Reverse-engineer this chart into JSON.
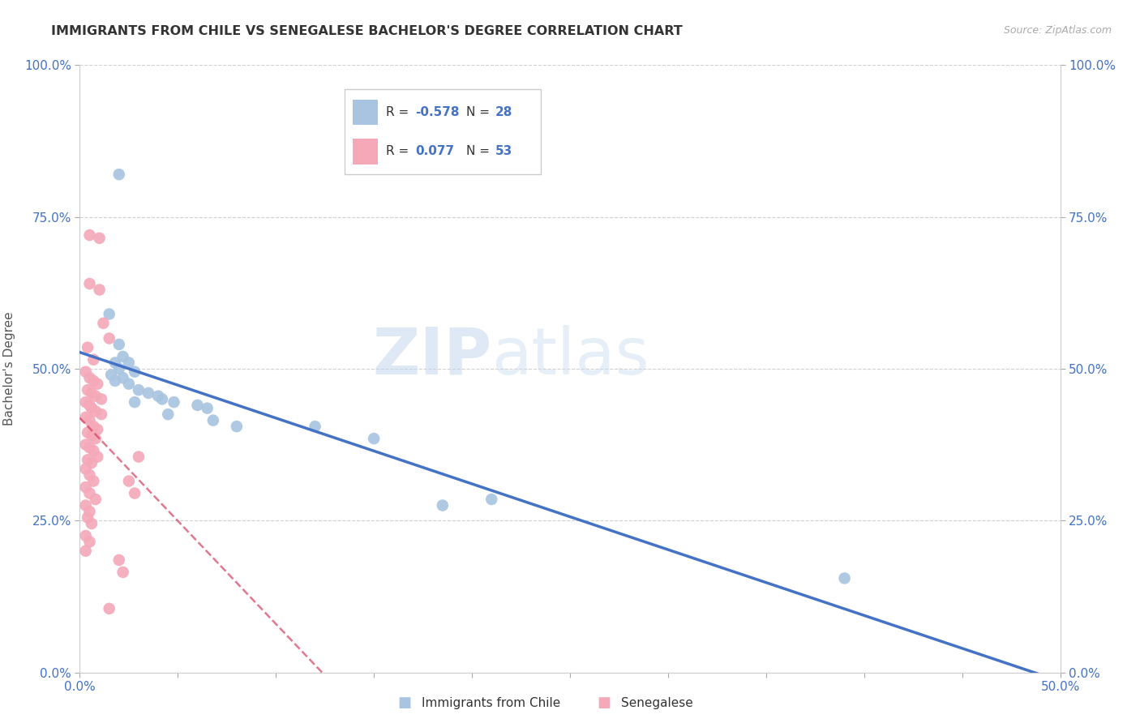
{
  "title": "IMMIGRANTS FROM CHILE VS SENEGALESE BACHELOR'S DEGREE CORRELATION CHART",
  "source": "Source: ZipAtlas.com",
  "xlabel": "",
  "ylabel": "Bachelor's Degree",
  "xlim": [
    0.0,
    0.5
  ],
  "ylim": [
    0.0,
    1.0
  ],
  "xtick_vals": [
    0.0,
    0.05,
    0.1,
    0.15,
    0.2,
    0.25,
    0.3,
    0.35,
    0.4,
    0.45,
    0.5
  ],
  "xtick_labels_show": [
    "0.0%",
    "",
    "",
    "",
    "",
    "",
    "",
    "",
    "",
    "",
    "50.0%"
  ],
  "ytick_vals": [
    0.0,
    0.25,
    0.5,
    0.75,
    1.0
  ],
  "ytick_labels": [
    "0.0%",
    "25.0%",
    "50.0%",
    "75.0%",
    "100.0%"
  ],
  "legend_r_chile": "-0.578",
  "legend_n_chile": "28",
  "legend_r_senegal": "0.077",
  "legend_n_senegal": "53",
  "chile_color": "#a8c4e0",
  "senegal_color": "#f4a8b8",
  "chile_line_color": "#4472c4",
  "senegal_line_color": "#d04060",
  "senegal_line_style": "--",
  "watermark_zip": "ZIP",
  "watermark_atlas": "atlas",
  "chile_points": [
    [
      0.02,
      0.82
    ],
    [
      0.015,
      0.59
    ],
    [
      0.02,
      0.54
    ],
    [
      0.022,
      0.52
    ],
    [
      0.018,
      0.51
    ],
    [
      0.025,
      0.51
    ],
    [
      0.02,
      0.5
    ],
    [
      0.028,
      0.495
    ],
    [
      0.016,
      0.49
    ],
    [
      0.022,
      0.485
    ],
    [
      0.018,
      0.48
    ],
    [
      0.025,
      0.475
    ],
    [
      0.03,
      0.465
    ],
    [
      0.035,
      0.46
    ],
    [
      0.04,
      0.455
    ],
    [
      0.042,
      0.45
    ],
    [
      0.028,
      0.445
    ],
    [
      0.048,
      0.445
    ],
    [
      0.06,
      0.44
    ],
    [
      0.065,
      0.435
    ],
    [
      0.045,
      0.425
    ],
    [
      0.068,
      0.415
    ],
    [
      0.08,
      0.405
    ],
    [
      0.12,
      0.405
    ],
    [
      0.15,
      0.385
    ],
    [
      0.21,
      0.285
    ],
    [
      0.185,
      0.275
    ],
    [
      0.39,
      0.155
    ]
  ],
  "senegal_points": [
    [
      0.005,
      0.72
    ],
    [
      0.01,
      0.715
    ],
    [
      0.005,
      0.64
    ],
    [
      0.01,
      0.63
    ],
    [
      0.012,
      0.575
    ],
    [
      0.015,
      0.55
    ],
    [
      0.004,
      0.535
    ],
    [
      0.007,
      0.515
    ],
    [
      0.003,
      0.495
    ],
    [
      0.005,
      0.485
    ],
    [
      0.007,
      0.48
    ],
    [
      0.009,
      0.475
    ],
    [
      0.004,
      0.465
    ],
    [
      0.006,
      0.46
    ],
    [
      0.008,
      0.455
    ],
    [
      0.011,
      0.45
    ],
    [
      0.003,
      0.445
    ],
    [
      0.005,
      0.44
    ],
    [
      0.006,
      0.435
    ],
    [
      0.008,
      0.43
    ],
    [
      0.011,
      0.425
    ],
    [
      0.003,
      0.42
    ],
    [
      0.005,
      0.415
    ],
    [
      0.007,
      0.405
    ],
    [
      0.009,
      0.4
    ],
    [
      0.004,
      0.395
    ],
    [
      0.006,
      0.39
    ],
    [
      0.008,
      0.385
    ],
    [
      0.003,
      0.375
    ],
    [
      0.005,
      0.37
    ],
    [
      0.007,
      0.365
    ],
    [
      0.009,
      0.355
    ],
    [
      0.004,
      0.35
    ],
    [
      0.006,
      0.345
    ],
    [
      0.003,
      0.335
    ],
    [
      0.005,
      0.325
    ],
    [
      0.007,
      0.315
    ],
    [
      0.003,
      0.305
    ],
    [
      0.005,
      0.295
    ],
    [
      0.008,
      0.285
    ],
    [
      0.003,
      0.275
    ],
    [
      0.005,
      0.265
    ],
    [
      0.004,
      0.255
    ],
    [
      0.006,
      0.245
    ],
    [
      0.003,
      0.225
    ],
    [
      0.005,
      0.215
    ],
    [
      0.003,
      0.2
    ],
    [
      0.03,
      0.355
    ],
    [
      0.025,
      0.315
    ],
    [
      0.028,
      0.295
    ],
    [
      0.015,
      0.105
    ],
    [
      0.02,
      0.185
    ],
    [
      0.022,
      0.165
    ]
  ],
  "chile_regr": [
    0.0,
    0.5,
    0.495,
    0.0
  ],
  "senegal_regr": [
    0.0,
    0.5,
    0.38,
    0.42
  ]
}
